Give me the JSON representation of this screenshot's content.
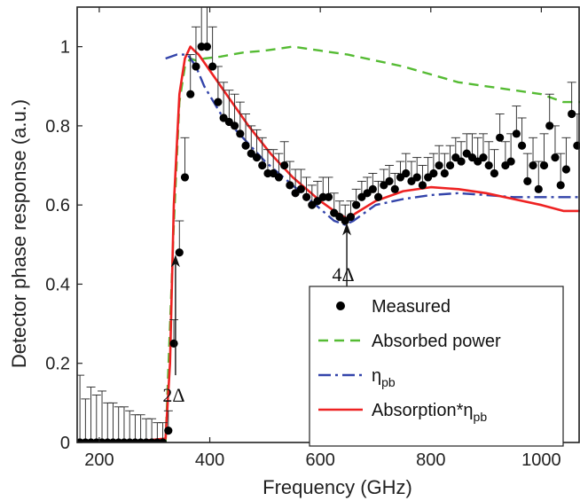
{
  "chart_data": {
    "type": "line",
    "title": "",
    "xlabel": "Frequency (GHz)",
    "ylabel": "Detector phase response (a.u.)",
    "xlim": [
      160,
      1070
    ],
    "ylim": [
      0,
      1.1
    ],
    "xticks": [
      200,
      400,
      600,
      800,
      1000
    ],
    "yticks": [
      0,
      0.2,
      0.4,
      0.6,
      0.8,
      1
    ],
    "xtick_labels": [
      "200",
      "400",
      "600",
      "800",
      "1000"
    ],
    "ytick_labels": [
      "0",
      "0.2",
      "0.4",
      "0.6",
      "0.8",
      "1"
    ],
    "grid": false,
    "legend_position": "bottom-right",
    "legend": [
      {
        "label": "Measured",
        "sub": "",
        "series": "measured"
      },
      {
        "label": "Absorbed power",
        "sub": "",
        "series": "absorbed"
      },
      {
        "label": "η",
        "sub": "pb",
        "series": "eta"
      },
      {
        "label": "Absorption*η",
        "sub": "pb",
        "series": "product"
      }
    ],
    "annotations": [
      {
        "text": "2Δ",
        "x": 338,
        "y_arrow_start": 0.17,
        "y_arrow_end": 0.47
      },
      {
        "text": "4Δ",
        "x": 648,
        "y_arrow_start": 0.39,
        "y_arrow_end": 0.55
      }
    ],
    "series": [
      {
        "id": "measured",
        "type": "scatter",
        "color": "#000000",
        "x": [
          165,
          175,
          185,
          195,
          205,
          215,
          225,
          235,
          245,
          255,
          265,
          275,
          285,
          295,
          305,
          315,
          325,
          335,
          345,
          355,
          365,
          375,
          385,
          395,
          405,
          415,
          425,
          435,
          445,
          455,
          465,
          475,
          485,
          495,
          505,
          515,
          525,
          535,
          545,
          555,
          565,
          575,
          585,
          595,
          605,
          615,
          625,
          635,
          645,
          655,
          665,
          675,
          685,
          695,
          705,
          715,
          725,
          735,
          745,
          755,
          765,
          775,
          785,
          795,
          805,
          815,
          825,
          835,
          845,
          855,
          865,
          875,
          885,
          895,
          905,
          915,
          925,
          935,
          945,
          955,
          965,
          975,
          985,
          995,
          1005,
          1015,
          1025,
          1035,
          1045,
          1055,
          1065
        ],
        "y": [
          0,
          0,
          0,
          0,
          0,
          0,
          0,
          0,
          0,
          0,
          0,
          0,
          0,
          0,
          0,
          0,
          0.03,
          0.25,
          0.48,
          0.67,
          0.88,
          0.95,
          1.0,
          1.0,
          0.95,
          0.86,
          0.82,
          0.81,
          0.8,
          0.78,
          0.75,
          0.73,
          0.72,
          0.7,
          0.68,
          0.68,
          0.67,
          0.7,
          0.65,
          0.63,
          0.64,
          0.62,
          0.6,
          0.61,
          0.62,
          0.62,
          0.58,
          0.57,
          0.56,
          0.57,
          0.6,
          0.62,
          0.63,
          0.64,
          0.62,
          0.65,
          0.66,
          0.64,
          0.67,
          0.68,
          0.66,
          0.67,
          0.65,
          0.67,
          0.68,
          0.7,
          0.68,
          0.7,
          0.72,
          0.71,
          0.73,
          0.72,
          0.71,
          0.72,
          0.7,
          0.68,
          0.77,
          0.7,
          0.71,
          0.78,
          0.75,
          0.66,
          0.7,
          0.64,
          0.7,
          0.8,
          0.72,
          0.65,
          0.69,
          0.83,
          0.75
        ],
        "err": [
          0.17,
          0.11,
          0.14,
          0.12,
          0.13,
          0.1,
          0.1,
          0.09,
          0.09,
          0.08,
          0.07,
          0.07,
          0.06,
          0.06,
          0.05,
          0.05,
          0.05,
          0.06,
          0.08,
          0.1,
          0.1,
          0.1,
          0.11,
          0.11,
          0.1,
          0.09,
          0.09,
          0.08,
          0.08,
          0.08,
          0.08,
          0.07,
          0.07,
          0.07,
          0.06,
          0.06,
          0.06,
          0.06,
          0.06,
          0.06,
          0.05,
          0.05,
          0.05,
          0.05,
          0.05,
          0.05,
          0.05,
          0.04,
          0.04,
          0.04,
          0.04,
          0.04,
          0.04,
          0.04,
          0.04,
          0.04,
          0.04,
          0.04,
          0.04,
          0.05,
          0.05,
          0.05,
          0.05,
          0.05,
          0.05,
          0.05,
          0.05,
          0.05,
          0.05,
          0.05,
          0.05,
          0.06,
          0.06,
          0.06,
          0.06,
          0.06,
          0.06,
          0.06,
          0.07,
          0.07,
          0.07,
          0.07,
          0.07,
          0.07,
          0.08,
          0.08,
          0.08,
          0.08,
          0.08,
          0.08,
          0.08
        ]
      },
      {
        "id": "absorbed",
        "type": "line",
        "color": "#55bb33",
        "dash": "11,7",
        "x": [
          320,
          335,
          345,
          355,
          365,
          375,
          390,
          420,
          460,
          500,
          550,
          600,
          650,
          700,
          750,
          800,
          850,
          900,
          950,
          1000,
          1040,
          1070
        ],
        "y": [
          0.0,
          0.55,
          0.86,
          0.95,
          0.97,
          0.965,
          0.97,
          0.975,
          0.985,
          0.99,
          1.0,
          0.99,
          0.98,
          0.965,
          0.95,
          0.93,
          0.91,
          0.9,
          0.89,
          0.88,
          0.86,
          0.86
        ]
      },
      {
        "id": "eta",
        "type": "line",
        "color": "#3344aa",
        "dash": "14,5,3,5",
        "x": [
          320,
          340,
          360,
          375,
          390,
          420,
          460,
          500,
          550,
          600,
          625,
          645,
          660,
          680,
          700,
          750,
          800,
          850,
          900,
          950,
          1000,
          1070
        ],
        "y": [
          0.97,
          0.98,
          0.98,
          0.95,
          0.9,
          0.83,
          0.77,
          0.71,
          0.65,
          0.59,
          0.56,
          0.55,
          0.56,
          0.58,
          0.6,
          0.615,
          0.625,
          0.63,
          0.625,
          0.62,
          0.62,
          0.62
        ]
      },
      {
        "id": "product",
        "type": "line",
        "color": "#ee2222",
        "dash": "",
        "x": [
          160,
          250,
          320,
          328,
          335,
          345,
          355,
          365,
          372,
          380,
          400,
          430,
          470,
          510,
          550,
          600,
          630,
          650,
          665,
          700,
          750,
          800,
          850,
          900,
          950,
          1000,
          1040,
          1070
        ],
        "y": [
          0,
          0,
          0.01,
          0.2,
          0.6,
          0.88,
          0.97,
          1.0,
          0.99,
          0.98,
          0.94,
          0.88,
          0.8,
          0.73,
          0.67,
          0.61,
          0.58,
          0.565,
          0.58,
          0.61,
          0.635,
          0.645,
          0.64,
          0.63,
          0.615,
          0.6,
          0.585,
          0.585
        ]
      }
    ]
  }
}
